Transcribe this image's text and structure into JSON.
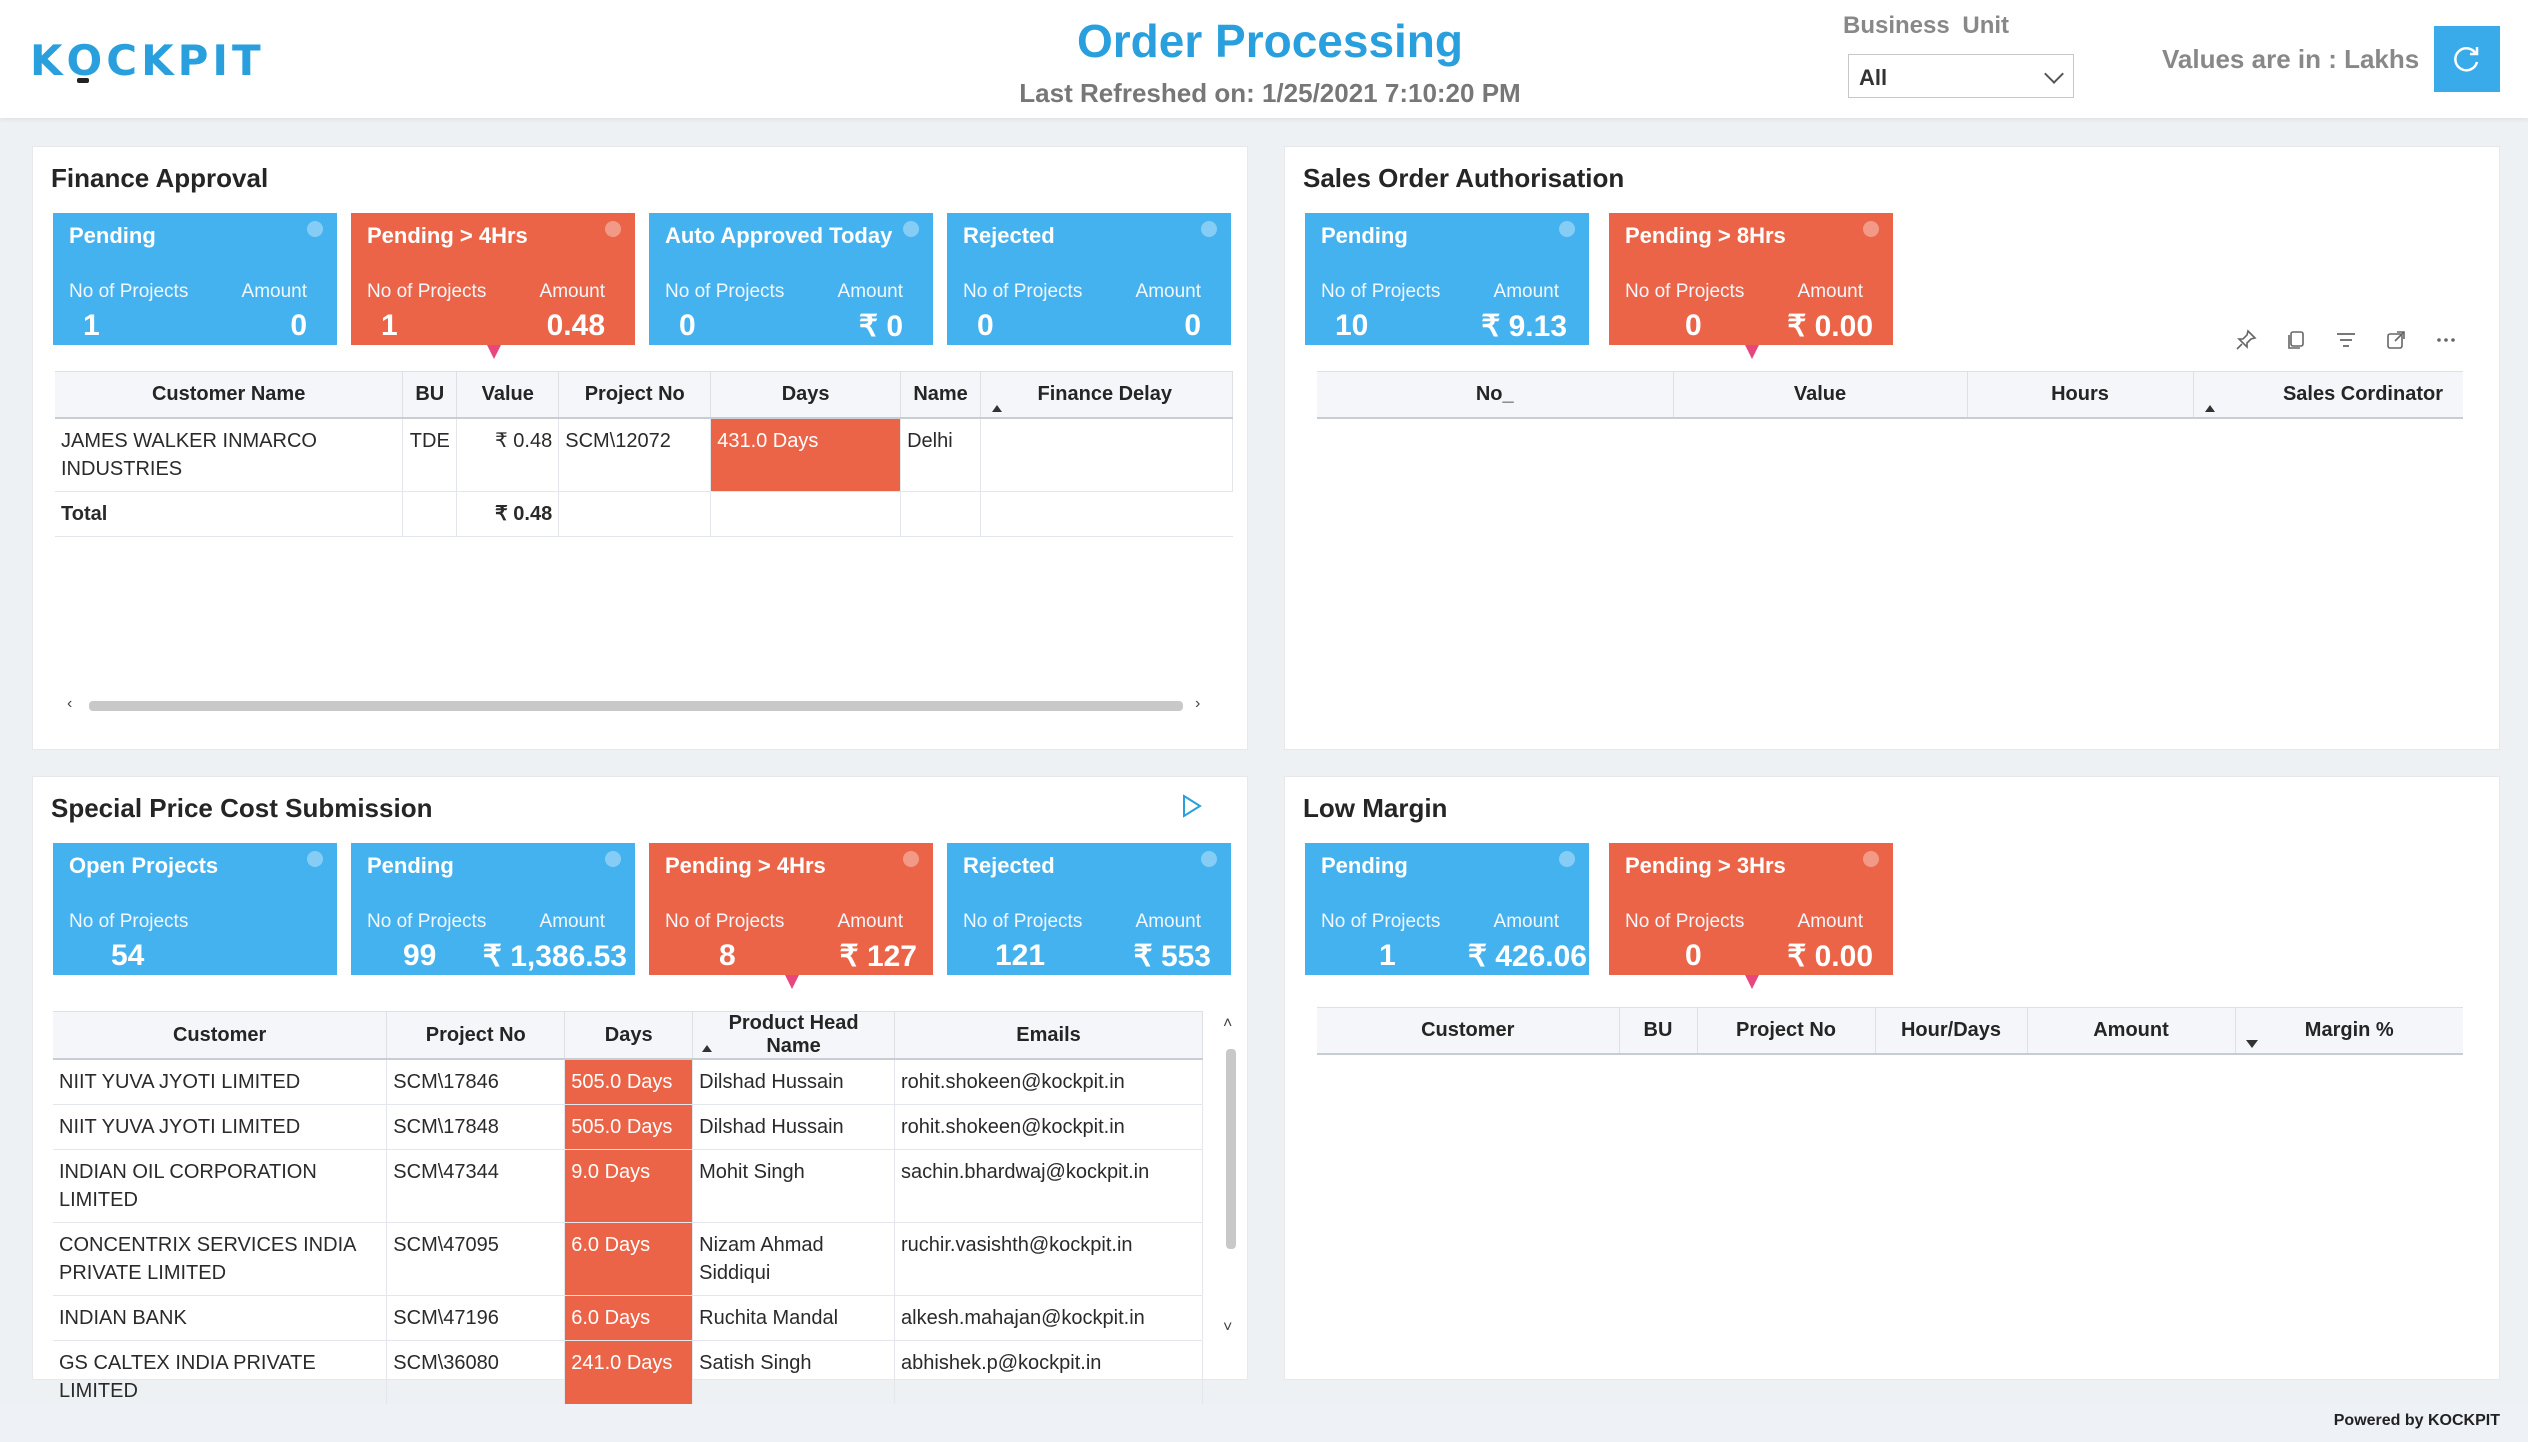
{
  "header": {
    "logo": "KOCKPIT",
    "title": "Order Processing",
    "last_refreshed": "Last Refreshed on: 1/25/2021 7:10:20 PM",
    "business_unit_label": "Business  Unit",
    "business_unit_value": "All",
    "values_in": "Values are in : Lakhs"
  },
  "finance": {
    "title": "Finance Approval",
    "kpis": [
      {
        "title": "Pending",
        "l1": "No of Projects",
        "v1": "1",
        "l2": "Amount",
        "v2": "0"
      },
      {
        "title": "Pending > 4Hrs",
        "l1": "No of Projects",
        "v1": "1",
        "l2": "Amount",
        "v2": "0.48"
      },
      {
        "title": "Auto Approved Today",
        "l1": "No of Projects",
        "v1": "0",
        "l2": "Amount",
        "v2": "₹ 0"
      },
      {
        "title": "Rejected",
        "l1": "No of Projects",
        "v1": "0",
        "l2": "Amount",
        "v2": "0"
      }
    ],
    "columns": [
      "Customer Name",
      "BU",
      "Value",
      "Project No",
      "Days",
      "Name",
      "Finance Delay"
    ],
    "rows": [
      [
        "JAMES WALKER INMARCO INDUSTRIES",
        "TDE",
        "₹ 0.48",
        "SCM\\12072",
        "431.0 Days",
        "Delhi",
        ""
      ]
    ],
    "total_label": "Total",
    "total_value": "₹ 0.48"
  },
  "sales": {
    "title": "Sales Order Authorisation",
    "kpis": [
      {
        "title": "Pending",
        "l1": "No of Projects",
        "v1": "10",
        "l2": "Amount",
        "v2": "₹ 9.13"
      },
      {
        "title": "Pending > 8Hrs",
        "l1": "No of Projects",
        "v1": "0",
        "l2": "Amount",
        "v2": "₹ 0.00"
      }
    ],
    "columns": [
      "No_",
      "Value",
      "Hours",
      "Sales Cordinator"
    ]
  },
  "special": {
    "title": "Special Price Cost Submission",
    "kpis": [
      {
        "title": "Open Projects",
        "l1": "No of Projects",
        "v1": "54",
        "l2": "",
        "v2": ""
      },
      {
        "title": "Pending",
        "l1": "No of Projects",
        "v1": "99",
        "l2": "Amount",
        "v2": "₹ 1,386.53"
      },
      {
        "title": "Pending > 4Hrs",
        "l1": "No of Projects",
        "v1": "8",
        "l2": "Amount",
        "v2": "₹ 127"
      },
      {
        "title": "Rejected",
        "l1": "No of Projects",
        "v1": "121",
        "l2": "Amount",
        "v2": "₹ 553"
      }
    ],
    "columns": [
      "Customer",
      "Project No",
      "Days",
      "Product Head Name",
      "Emails"
    ],
    "rows": [
      [
        "NIIT YUVA JYOTI LIMITED",
        "SCM\\17846",
        "505.0 Days",
        "Dilshad Hussain",
        "rohit.shokeen@kockpit.in"
      ],
      [
        "NIIT YUVA JYOTI LIMITED",
        "SCM\\17848",
        "505.0 Days",
        "Dilshad Hussain",
        "rohit.shokeen@kockpit.in"
      ],
      [
        "INDIAN OIL CORPORATION LIMITED",
        "SCM\\47344",
        "9.0 Days",
        "Mohit Singh",
        "sachin.bhardwaj@kockpit.in"
      ],
      [
        "CONCENTRIX SERVICES INDIA PRIVATE LIMITED",
        "SCM\\47095",
        "6.0 Days",
        "Nizam Ahmad Siddiqui",
        "ruchir.vasishth@kockpit.in"
      ],
      [
        "INDIAN BANK",
        "SCM\\47196",
        "6.0 Days",
        "Ruchita Mandal",
        "alkesh.mahajan@kockpit.in"
      ],
      [
        "GS CALTEX INDIA PRIVATE LIMITED",
        "SCM\\36080",
        "241.0 Days",
        "Satish Singh",
        "abhishek.p@kockpit.in"
      ]
    ]
  },
  "low_margin": {
    "title": "Low Margin",
    "kpis": [
      {
        "title": "Pending",
        "l1": "No of Projects",
        "v1": "1",
        "l2": "Amount",
        "v2": "₹ 426.06"
      },
      {
        "title": "Pending > 3Hrs",
        "l1": "No of Projects",
        "v1": "0",
        "l2": "Amount",
        "v2": "₹ 0.00"
      }
    ],
    "columns": [
      "Customer",
      "BU",
      "Project No",
      "Hour/Days",
      "Amount",
      "Margin %"
    ]
  },
  "footer": {
    "powered_by": "Powered by KOCKPIT"
  },
  "colors": {
    "accent": "#29a0dd",
    "kpi_blue": "#45b2f0",
    "kpi_red": "#ec6447",
    "pointer": "#e8477e"
  }
}
